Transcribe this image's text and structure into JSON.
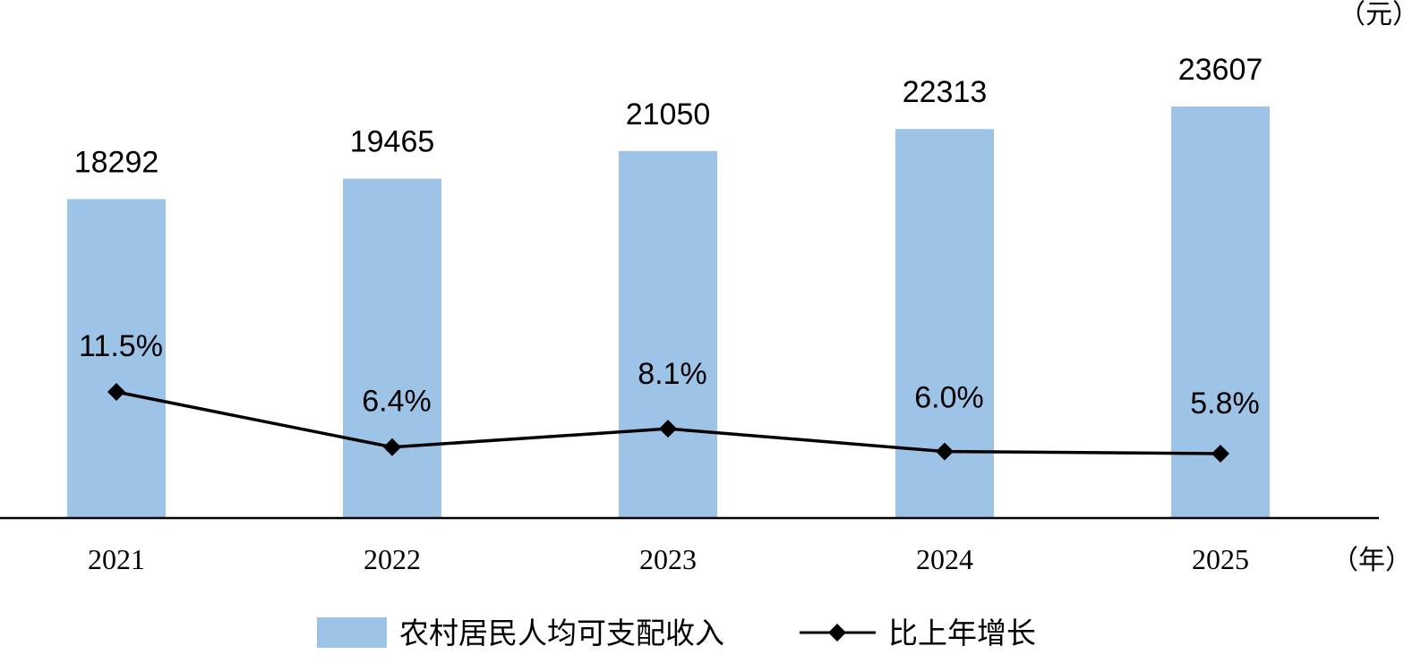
{
  "chart_data": {
    "type": "bar",
    "categories": [
      "2021",
      "2022",
      "2023",
      "2024",
      "2025"
    ],
    "series": [
      {
        "name": "农村居民人均可支配收入",
        "type": "bar",
        "values": [
          18292,
          19465,
          21050,
          22313,
          23607
        ],
        "labels": [
          "18292",
          "19465",
          "21050",
          "22313",
          "23607"
        ],
        "color": "#9dc3e6"
      },
      {
        "name": "比上年增长",
        "type": "line",
        "values": [
          11.5,
          6.4,
          8.1,
          6.0,
          5.8
        ],
        "labels": [
          "11.5%",
          "6.4%",
          "8.1%",
          "6.0%",
          "5.8%"
        ],
        "color": "#000000",
        "marker": "diamond"
      }
    ],
    "y_unit": "（元）",
    "x_unit": "（年）",
    "ylim": [
      0,
      26000
    ],
    "y2lim": [
      0,
      30
    ],
    "grid": false,
    "legend_position": "bottom-center"
  }
}
